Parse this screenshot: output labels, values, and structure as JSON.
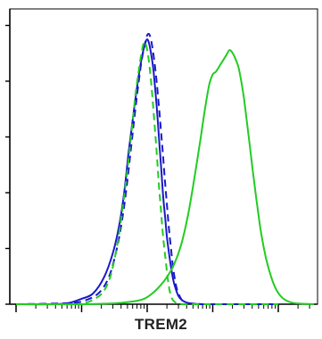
{
  "chart_data": {
    "type": "line",
    "title": "",
    "xlabel": "TREM2",
    "ylabel": "",
    "xscale": "log",
    "xlim": [
      1,
      100000
    ],
    "ylim": [
      0,
      1
    ],
    "grid": false,
    "legend": "none",
    "series": [
      {
        "color": "#1a1ac8",
        "style": "solid",
        "x": [
          1,
          3,
          6,
          10,
          15,
          22,
          30,
          38,
          45,
          52,
          60,
          68,
          76,
          84,
          92,
          100,
          108,
          116,
          124,
          132,
          140,
          148,
          156,
          165,
          175,
          188,
          200,
          215,
          230,
          250,
          270,
          300,
          340,
          400,
          500,
          650,
          900,
          1500,
          3000,
          10000,
          100000
        ],
        "y": [
          0,
          0,
          0.003,
          0.02,
          0.04,
          0.1,
          0.19,
          0.3,
          0.42,
          0.56,
          0.68,
          0.78,
          0.86,
          0.92,
          0.96,
          0.98,
          0.96,
          0.92,
          0.87,
          0.8,
          0.73,
          0.65,
          0.57,
          0.49,
          0.4,
          0.32,
          0.25,
          0.19,
          0.14,
          0.09,
          0.06,
          0.03,
          0.015,
          0.006,
          0.002,
          0,
          0,
          0,
          0,
          0,
          0
        ]
      },
      {
        "color": "#1a1ac8",
        "style": "dashed",
        "x": [
          1,
          5,
          10,
          18,
          26,
          34,
          42,
          50,
          58,
          66,
          74,
          82,
          90,
          98,
          106,
          114,
          122,
          130,
          140,
          150,
          160,
          172,
          185,
          200,
          215,
          232,
          250,
          275,
          300,
          340,
          400,
          500,
          700,
          1000,
          3000,
          10000,
          100000
        ],
        "y": [
          0,
          0.003,
          0.01,
          0.04,
          0.1,
          0.2,
          0.32,
          0.46,
          0.6,
          0.72,
          0.82,
          0.9,
          0.95,
          0.99,
          1.0,
          0.98,
          0.94,
          0.89,
          0.82,
          0.74,
          0.66,
          0.57,
          0.47,
          0.37,
          0.28,
          0.2,
          0.13,
          0.07,
          0.04,
          0.015,
          0.005,
          0.002,
          0,
          0,
          0,
          0,
          0
        ]
      },
      {
        "color": "#22cc22",
        "style": "dashed",
        "x": [
          1,
          5,
          10,
          16,
          22,
          28,
          35,
          42,
          50,
          58,
          66,
          74,
          82,
          90,
          98,
          106,
          114,
          122,
          130,
          140,
          150,
          162,
          175,
          190,
          205,
          220,
          240,
          265,
          300,
          350,
          450,
          700,
          1500,
          10000,
          100000
        ],
        "y": [
          0,
          0,
          0.002,
          0.02,
          0.05,
          0.11,
          0.22,
          0.35,
          0.5,
          0.64,
          0.77,
          0.86,
          0.93,
          0.97,
          0.95,
          0.9,
          0.83,
          0.75,
          0.66,
          0.56,
          0.45,
          0.35,
          0.25,
          0.17,
          0.1,
          0.05,
          0.02,
          0.008,
          0.002,
          0,
          0,
          0,
          0,
          0,
          0
        ]
      },
      {
        "color": "#22cc22",
        "style": "solid",
        "x": [
          1,
          10,
          30,
          60,
          90,
          120,
          160,
          200,
          260,
          330,
          420,
          520,
          640,
          760,
          880,
          1000,
          1120,
          1260,
          1420,
          1600,
          1800,
          2000,
          2200,
          2450,
          2700,
          3000,
          3300,
          3700,
          4200,
          4800,
          5500,
          6500,
          7800,
          9500,
          12000,
          16000,
          22000,
          35000,
          60000,
          100000
        ],
        "y": [
          0,
          0,
          0.003,
          0.01,
          0.02,
          0.04,
          0.07,
          0.1,
          0.15,
          0.22,
          0.33,
          0.46,
          0.6,
          0.72,
          0.81,
          0.85,
          0.86,
          0.88,
          0.9,
          0.92,
          0.94,
          0.93,
          0.91,
          0.88,
          0.83,
          0.76,
          0.68,
          0.58,
          0.47,
          0.36,
          0.26,
          0.17,
          0.1,
          0.05,
          0.02,
          0.006,
          0.002,
          0,
          0,
          0
        ]
      }
    ]
  }
}
